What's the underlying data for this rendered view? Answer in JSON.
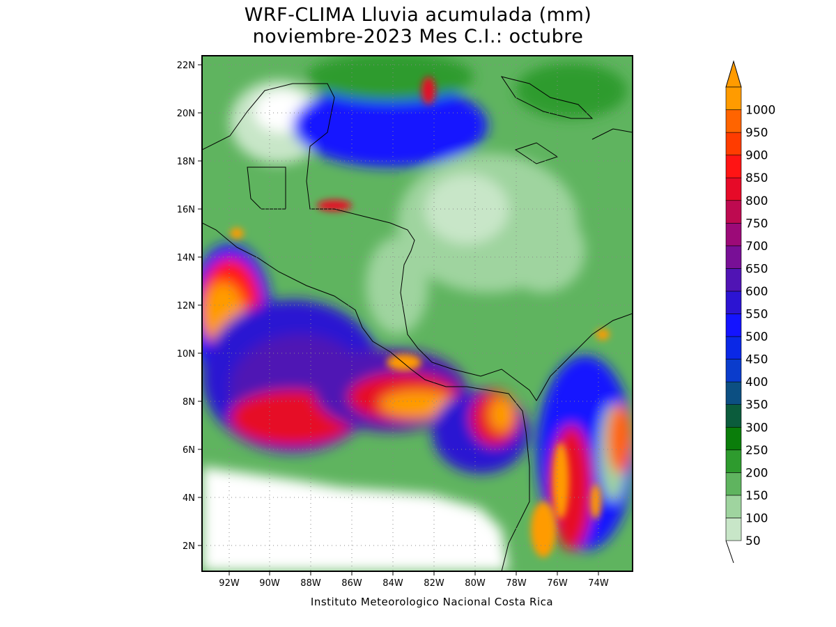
{
  "title": {
    "line1": "WRF-CLIMA Lluvia acumulada (mm)",
    "line2": "noviembre-2023 Mes C.I.: octubre"
  },
  "credit": "Instituto Meteorologico Nacional Costa Rica",
  "map": {
    "lon_range": [
      -93.3,
      -72.3
    ],
    "lat_range": [
      0.9,
      22.5
    ],
    "lat_ticks": [
      "2N",
      "4N",
      "6N",
      "8N",
      "10N",
      "12N",
      "14N",
      "16N",
      "18N",
      "20N",
      "22N"
    ],
    "lon_ticks": [
      "92W",
      "90W",
      "88W",
      "86W",
      "84W",
      "82W",
      "80W",
      "78W",
      "76W",
      "74W"
    ],
    "grid": "dotted",
    "background_color": "#ffffff"
  },
  "legend": {
    "levels": [
      "50",
      "100",
      "150",
      "200",
      "250",
      "300",
      "350",
      "400",
      "450",
      "500",
      "550",
      "600",
      "650",
      "700",
      "750",
      "800",
      "850",
      "900",
      "950",
      "1000"
    ],
    "colors": [
      "#c8e6c8",
      "#9fd49f",
      "#5fb45f",
      "#2e9b2e",
      "#0a7d0a",
      "#0b5c3c",
      "#0c4f82",
      "#0a3ccc",
      "#0a28e6",
      "#1414ff",
      "#2c14d2",
      "#5014b4",
      "#780f96",
      "#9c0a78",
      "#be0a50",
      "#e60a28",
      "#ff1414",
      "#ff3c00",
      "#ff6400",
      "#ff9b00"
    ],
    "placement": "right"
  }
}
